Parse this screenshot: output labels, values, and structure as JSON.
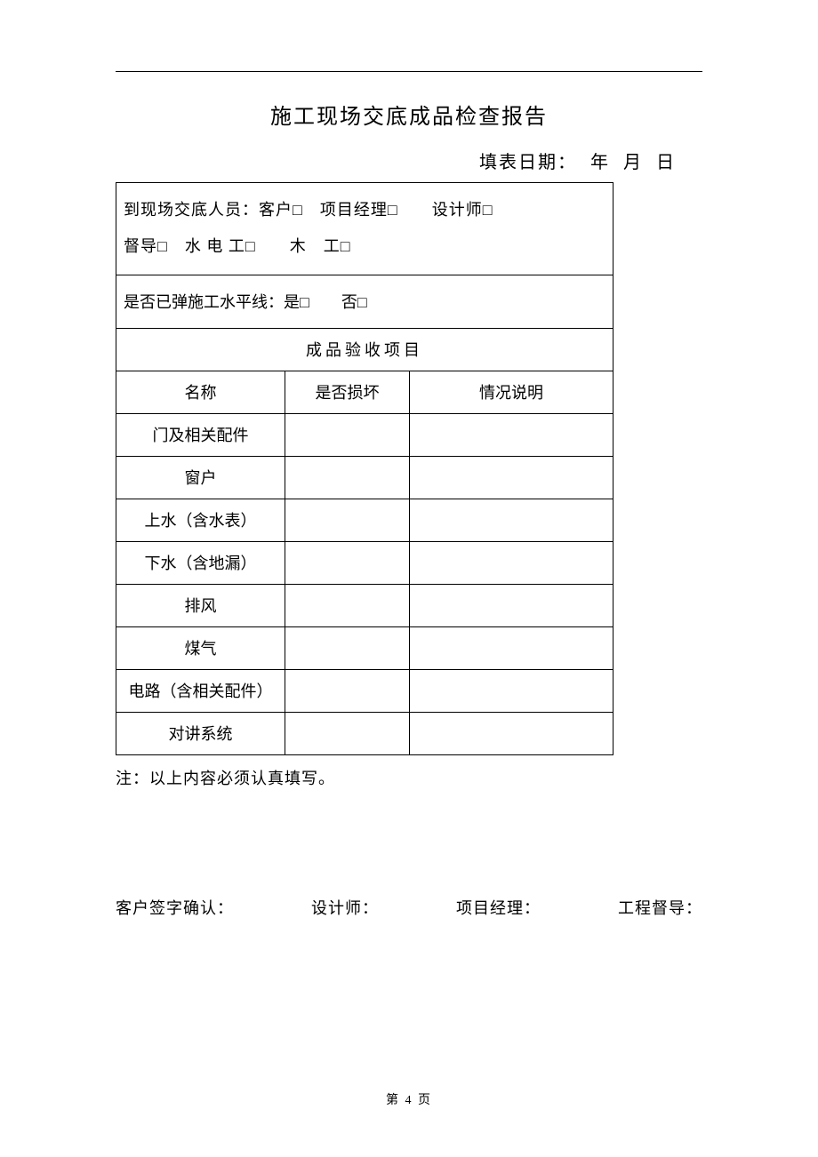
{
  "title": "施工现场交底成品检查报告",
  "date": {
    "label": "填表日期：",
    "year": "年",
    "month": "月",
    "day": "日"
  },
  "personnel": {
    "label": "到现场交底人员：",
    "options_line1": [
      {
        "name": "客户",
        "box": "□"
      },
      {
        "name": "项目经理",
        "box": "□"
      },
      {
        "name": "设计师",
        "box": "□"
      }
    ],
    "options_line2": [
      {
        "name": "督导",
        "box": "□"
      },
      {
        "name": "水 电 工",
        "box": "□"
      },
      {
        "name": "木　工",
        "box": "□"
      }
    ]
  },
  "construction_line": {
    "label": "是否已弹施工水平线：",
    "yes": "是",
    "no": "否",
    "box": "□"
  },
  "section_header": "成品验收项目",
  "table": {
    "columns": [
      "名称",
      "是否损坏",
      "情况说明"
    ],
    "rows": [
      {
        "name": "门及相关配件",
        "damage": "",
        "desc": ""
      },
      {
        "name": "窗户",
        "damage": "",
        "desc": ""
      },
      {
        "name": "上水（含水表）",
        "damage": "",
        "desc": ""
      },
      {
        "name": "下水（含地漏）",
        "damage": "",
        "desc": ""
      },
      {
        "name": "排风",
        "damage": "",
        "desc": ""
      },
      {
        "name": "煤气",
        "damage": "",
        "desc": ""
      },
      {
        "name": "电路（含相关配件）",
        "damage": "",
        "desc": ""
      },
      {
        "name": "对讲系统",
        "damage": "",
        "desc": ""
      }
    ]
  },
  "note": "注：以上内容必须认真填写。",
  "signatures": {
    "customer": "客户签字确认：",
    "designer": "设计师：",
    "pm": "项目经理：",
    "supervisor": "工程督导："
  },
  "footer": "第 4 页"
}
